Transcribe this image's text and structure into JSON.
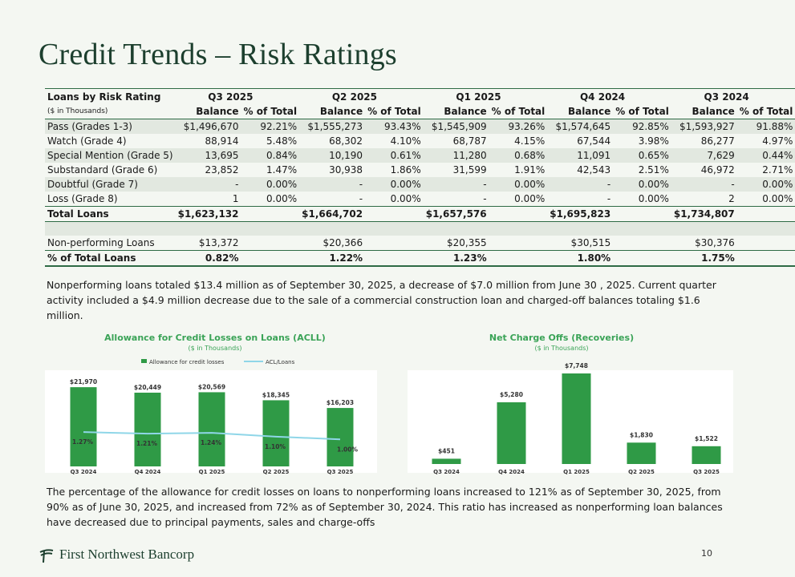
{
  "title": "Credit Trends – Risk Ratings",
  "table": {
    "corner_label": "Loans by Risk Rating",
    "units_label": "($ in Thousands)",
    "periods": [
      "Q3 2025",
      "Q2 2025",
      "Q1 2025",
      "Q4 2024",
      "Q3 2024"
    ],
    "col_balance": "Balance",
    "col_pct": "% of Total",
    "rows": [
      {
        "label": "Pass (Grades 1-3)",
        "cells": [
          "$1,496,670",
          "92.21%",
          "$1,555,273",
          "93.43%",
          "$1,545,909",
          "93.26%",
          "$1,574,645",
          "92.85%",
          "$1,593,927",
          "91.88%"
        ]
      },
      {
        "label": "Watch (Grade 4)",
        "cells": [
          "88,914",
          "5.48%",
          "68,302",
          "4.10%",
          "68,787",
          "4.15%",
          "67,544",
          "3.98%",
          "86,277",
          "4.97%"
        ]
      },
      {
        "label": "Special Mention (Grade 5)",
        "cells": [
          "13,695",
          "0.84%",
          "10,190",
          "0.61%",
          "11,280",
          "0.68%",
          "11,091",
          "0.65%",
          "7,629",
          "0.44%"
        ]
      },
      {
        "label": "Substandard (Grade 6)",
        "cells": [
          "23,852",
          "1.47%",
          "30,938",
          "1.86%",
          "31,599",
          "1.91%",
          "42,543",
          "2.51%",
          "46,972",
          "2.71%"
        ]
      },
      {
        "label": "Doubtful (Grade 7)",
        "cells": [
          "-",
          "0.00%",
          "-",
          "0.00%",
          "-",
          "0.00%",
          "-",
          "0.00%",
          "-",
          "0.00%"
        ]
      },
      {
        "label": "Loss (Grade 8)",
        "cells": [
          "1",
          "0.00%",
          "-",
          "0.00%",
          "-",
          "0.00%",
          "-",
          "0.00%",
          "2",
          "0.00%"
        ]
      }
    ],
    "total": {
      "label": "Total Loans",
      "cells": [
        "$1,623,132",
        "",
        "$1,664,702",
        "",
        "$1,657,576",
        "",
        "$1,695,823",
        "",
        "$1,734,807",
        ""
      ]
    },
    "npl": {
      "label": "Non-performing Loans",
      "cells": [
        "$13,372",
        "",
        "$20,366",
        "",
        "$20,355",
        "",
        "$30,515",
        "",
        "$30,376",
        ""
      ]
    },
    "npl_pct": {
      "label": "% of Total Loans",
      "cells": [
        "0.82%",
        "",
        "1.22%",
        "",
        "1.23%",
        "",
        "1.80%",
        "",
        "1.75%",
        ""
      ]
    }
  },
  "paragraph1": "Nonperforming loans totaled $13.4 million as of September 30, 2025, a decrease of $7.0 million from June 30 , 2025. Current quarter activity included a $4.9 million decrease due to the sale of a commercial construction loan and charged-off balances totaling $1.6 million.",
  "paragraph2": "The percentage of the allowance for credit losses on loans to nonperforming loans increased to 121% as of September 30, 2025, from 90% as of June 30, 2025, and increased from 72% as of September 30, 2024. This ratio has increased as nonperforming loan balances have decreased due to principal payments, sales and charge-offs",
  "footer": {
    "company": "First Northwest Bancorp",
    "page_number": "10"
  },
  "colors": {
    "bar": "#2f9a46",
    "line": "#8fd6e8",
    "title_green": "#3aa357",
    "brand": "#1c3f2e"
  },
  "chart_data": [
    {
      "type": "bar",
      "title": "Allowance for Credit Losses on Loans (ACLL)",
      "subtitle": "($ in Thousands)",
      "categories": [
        "Q3 2024",
        "Q4 2024",
        "Q1 2025",
        "Q2 2025",
        "Q3 2025"
      ],
      "series": [
        {
          "name": "Allowance for credit losses",
          "type": "bar",
          "values": [
            21970,
            20449,
            20569,
            18345,
            16203
          ],
          "labels": [
            "$21,970",
            "$20,449",
            "$20,569",
            "$18,345",
            "$16,203"
          ]
        },
        {
          "name": "ACL/Loans",
          "type": "line",
          "values": [
            1.27,
            1.21,
            1.24,
            1.1,
            1.0
          ],
          "labels": [
            "1.27%",
            "1.21%",
            "1.24%",
            "1.10%",
            "1.00%"
          ]
        }
      ],
      "ylim": [
        0,
        24000
      ],
      "ylim_line": [
        0,
        3.2
      ],
      "legend": "top"
    },
    {
      "type": "bar",
      "title": "Net Charge Offs (Recoveries)",
      "subtitle": "($ in Thousands)",
      "categories": [
        "Q3 2024",
        "Q4 2024",
        "Q1 2025",
        "Q2 2025",
        "Q3 2025"
      ],
      "values": [
        451,
        5280,
        7748,
        1830,
        1522
      ],
      "labels": [
        "$451",
        "$5,280",
        "$7,748",
        "$1,830",
        "$1,522"
      ],
      "ylim": [
        0,
        7748
      ]
    }
  ]
}
